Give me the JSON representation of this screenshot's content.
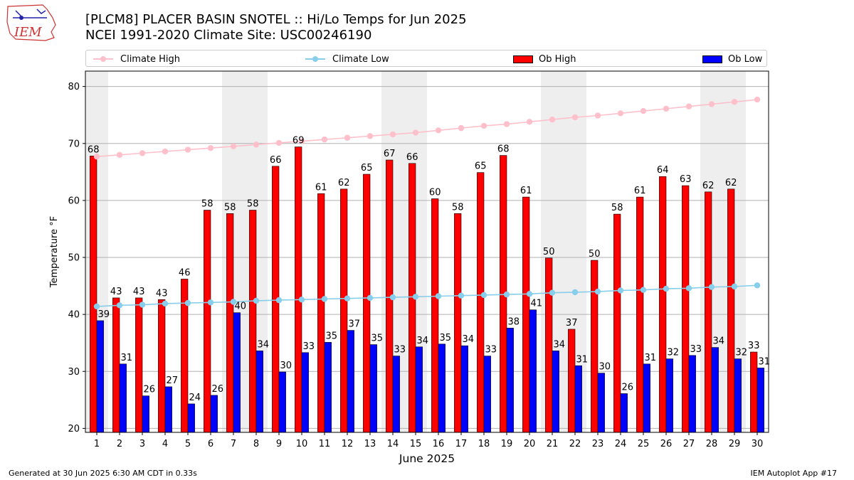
{
  "title_line1": "[PLCM8] PLACER BASIN SNOTEL :: Hi/Lo Temps for Jun 2025",
  "title_line2": "NCEI 1991-2020 Climate Site: USC00246190",
  "logo_text": "IEM",
  "footer_left": "Generated at 30 Jun 2025 6:30 AM CDT in 0.33s",
  "footer_right": "IEM Autoplot App #17",
  "colors": {
    "ob_high": "#ff0000",
    "ob_low": "#0000ff",
    "climate_high": "#ffc0cb",
    "climate_low": "#87ceeb",
    "weekend_band": "#eeeeee",
    "grid": "#b0b0b0"
  },
  "chart_data": {
    "type": "bar",
    "xlabel": "June 2025",
    "ylabel": "Temperature °F",
    "ylim": [
      19.3,
      82.7
    ],
    "yticks": [
      20,
      30,
      40,
      50,
      60,
      70,
      80
    ],
    "categories": [
      "1",
      "2",
      "3",
      "4",
      "5",
      "6",
      "7",
      "8",
      "9",
      "10",
      "11",
      "12",
      "13",
      "14",
      "15",
      "16",
      "17",
      "18",
      "19",
      "20",
      "21",
      "22",
      "23",
      "24",
      "25",
      "26",
      "27",
      "28",
      "29",
      "30"
    ],
    "shaded_days": [
      1,
      7,
      8,
      14,
      15,
      21,
      22,
      28,
      29
    ],
    "grid": "horizontal",
    "legend_position": "top",
    "series": [
      {
        "name": "Climate High",
        "kind": "line",
        "values": [
          67.7,
          68.0,
          68.3,
          68.6,
          68.9,
          69.2,
          69.5,
          69.8,
          70.1,
          70.4,
          70.7,
          71.0,
          71.3,
          71.6,
          71.9,
          72.3,
          72.7,
          73.1,
          73.4,
          73.8,
          74.2,
          74.6,
          74.9,
          75.3,
          75.7,
          76.1,
          76.5,
          76.9,
          77.3,
          77.7
        ]
      },
      {
        "name": "Climate Low",
        "kind": "line",
        "values": [
          41.4,
          41.6,
          41.7,
          41.9,
          42.0,
          42.1,
          42.2,
          42.4,
          42.5,
          42.6,
          42.7,
          42.8,
          42.9,
          43.0,
          43.1,
          43.2,
          43.3,
          43.4,
          43.5,
          43.6,
          43.8,
          43.9,
          44.0,
          44.2,
          44.3,
          44.5,
          44.6,
          44.8,
          44.9,
          45.1
        ]
      },
      {
        "name": "Ob High",
        "kind": "bar",
        "values": [
          68,
          43,
          43,
          43,
          46,
          58,
          58,
          58,
          66,
          69,
          61,
          62,
          65,
          67,
          66,
          60,
          58,
          65,
          68,
          61,
          50,
          37,
          50,
          58,
          61,
          64,
          63,
          62,
          62,
          33
        ],
        "plot_values": [
          67.8,
          42.9,
          42.9,
          42.6,
          46.2,
          58.3,
          57.7,
          58.3,
          66.0,
          69.4,
          61.2,
          62.0,
          64.6,
          67.1,
          66.5,
          60.3,
          57.7,
          64.9,
          67.9,
          60.6,
          49.9,
          37.4,
          49.5,
          57.6,
          60.6,
          64.2,
          62.6,
          61.5,
          62.0,
          33.4
        ]
      },
      {
        "name": "Ob Low",
        "kind": "bar",
        "values": [
          39,
          31,
          26,
          27,
          24,
          26,
          40,
          34,
          30,
          33,
          35,
          37,
          35,
          33,
          34,
          35,
          34,
          33,
          38,
          41,
          34,
          31,
          30,
          26,
          31,
          32,
          33,
          34,
          32,
          31
        ],
        "plot_values": [
          38.9,
          31.3,
          25.7,
          27.3,
          24.3,
          25.8,
          40.3,
          33.6,
          29.9,
          33.3,
          35.1,
          37.2,
          34.7,
          32.7,
          34.3,
          34.8,
          34.5,
          32.7,
          37.6,
          40.8,
          33.6,
          31.0,
          29.7,
          26.1,
          31.3,
          32.2,
          32.8,
          34.2,
          32.2,
          30.6
        ]
      }
    ]
  }
}
